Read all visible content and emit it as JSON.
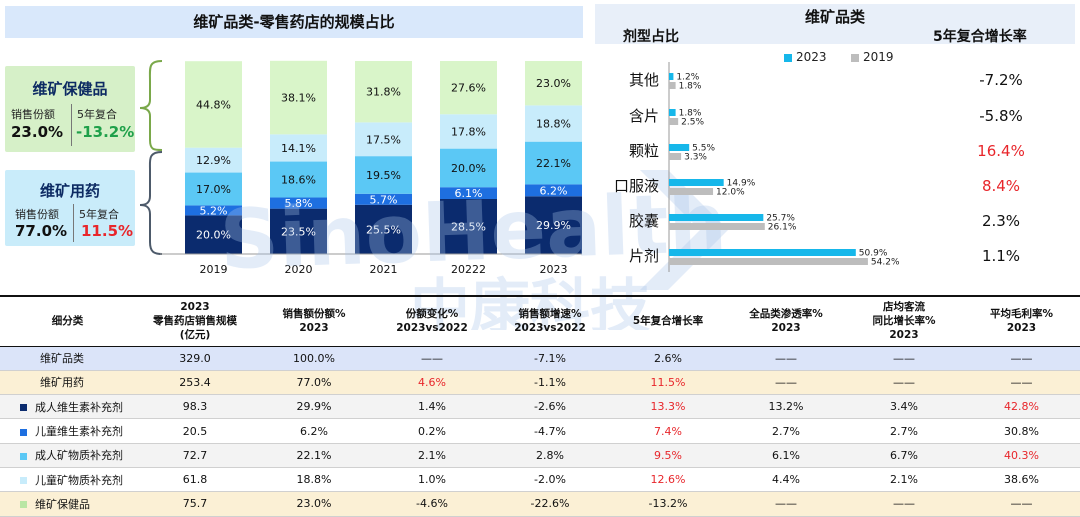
{
  "left_panel": {
    "title": "维矿品类-零售药店的规模占比",
    "health_callout": {
      "title": "维矿保健品",
      "share_label": "销售份额",
      "cagr_label": "5年复合",
      "share": "23.0%",
      "cagr": "-13.2%"
    },
    "drug_callout": {
      "title": "维矿用药",
      "share_label": "销售份额",
      "cagr_label": "5年复合",
      "share": "77.0%",
      "cagr": "11.5%"
    }
  },
  "right_panel": {
    "title": "维矿品类",
    "left_header": "剂型占比",
    "right_header": "5年复合增长率",
    "cagr_colors": {
      "positive": "#e8262b",
      "neutral": "#111111"
    }
  },
  "watermark": {
    "latin": "SinoHealth",
    "chinese": "中康科技"
  },
  "chart_data": [
    {
      "type": "bar",
      "stacked": true,
      "percent": true,
      "categories": [
        "2019",
        "2020",
        "2021",
        "20222",
        "2023"
      ],
      "series": [
        {
          "values": [
            20.0,
            23.5,
            25.5,
            28.5,
            29.9
          ],
          "color": "#0b2b6e"
        },
        {
          "values": [
            5.2,
            5.8,
            5.7,
            6.1,
            6.2
          ],
          "color": "#1e6fe0"
        },
        {
          "values": [
            17.0,
            18.6,
            19.5,
            20.0,
            22.1
          ],
          "color": "#5bc8f5"
        },
        {
          "values": [
            12.9,
            14.1,
            17.5,
            17.8,
            18.8
          ],
          "color": "#c8ecfb"
        },
        {
          "values": [
            44.8,
            38.1,
            31.8,
            27.6,
            23.0
          ],
          "color": "#d9f5c9"
        }
      ],
      "labels": [
        [
          "20.0%",
          "23.5%",
          "25.5%",
          "28.5%",
          "29.9%"
        ],
        [
          "5.2%",
          "5.8%",
          "5.7%",
          "6.1%",
          "6.2%"
        ],
        [
          "17.0%",
          "18.6%",
          "19.5%",
          "20.0%",
          "22.1%"
        ],
        [
          "12.9%",
          "14.1%",
          "17.5%",
          "17.8%",
          "18.8%"
        ],
        [
          "44.8%",
          "38.1%",
          "31.8%",
          "27.6%",
          "23.0%"
        ]
      ],
      "ylim": [
        0,
        100
      ],
      "title": "维矿品类-零售药店的规模占比"
    },
    {
      "type": "bar",
      "orientation": "horizontal",
      "categories": [
        "其他",
        "含片",
        "颗粒",
        "口服液",
        "胶囊",
        "片剂"
      ],
      "series": [
        {
          "name": "2023",
          "values": [
            1.2,
            1.8,
            5.5,
            14.9,
            25.7,
            50.9
          ],
          "color": "#16b7ea"
        },
        {
          "name": "2019",
          "values": [
            1.8,
            2.5,
            3.3,
            12.0,
            26.1,
            54.2
          ],
          "color": "#bdbdbd"
        }
      ],
      "cagr": [
        "-7.2%",
        "-5.8%",
        "16.4%",
        "8.4%",
        "2.3%",
        "1.1%"
      ],
      "cagr_red": [
        false,
        false,
        true,
        true,
        false,
        false
      ],
      "legend": "top",
      "xlim": [
        0,
        60
      ],
      "title": "维矿品类"
    }
  ],
  "table": {
    "headers": [
      "细分类",
      "2023\n零售药店销售规模\n(亿元)",
      "销售额份额%\n2023",
      "份额变化%\n2023vs2022",
      "销售额增速%\n2023vs2022",
      "5年复合增长率",
      "全品类渗透率%\n2023",
      "店均客流\n同比增长率%\n2023",
      "平均毛利率%\n2023"
    ],
    "rows": [
      {
        "kind": "cat",
        "marker": "",
        "cells": [
          "维矿品类",
          "329.0",
          "100.0%",
          "——",
          "-7.1%",
          "2.6%",
          "——",
          "——",
          "——"
        ],
        "red": []
      },
      {
        "kind": "drug",
        "marker": "",
        "cells": [
          "维矿用药",
          "253.4",
          "77.0%",
          "4.6%",
          "-1.1%",
          "11.5%",
          "——",
          "——",
          "——"
        ],
        "red": [
          3,
          5
        ]
      },
      {
        "kind": "sub",
        "marker": "#0b2b6e",
        "cells": [
          "成人维生素补充剂",
          "98.3",
          "29.9%",
          "1.4%",
          "-2.6%",
          "13.3%",
          "13.2%",
          "3.4%",
          "42.8%"
        ],
        "red": [
          5,
          8
        ]
      },
      {
        "kind": "sub",
        "marker": "#1e6fe0",
        "cells": [
          "儿童维生素补充剂",
          "20.5",
          "6.2%",
          "0.2%",
          "-4.7%",
          "7.4%",
          "2.7%",
          "2.7%",
          "30.8%"
        ],
        "red": [
          5
        ]
      },
      {
        "kind": "sub",
        "marker": "#5bc8f5",
        "cells": [
          "成人矿物质补充剂",
          "72.7",
          "22.1%",
          "2.1%",
          "2.8%",
          "9.5%",
          "6.1%",
          "6.7%",
          "40.3%"
        ],
        "red": [
          5,
          8
        ]
      },
      {
        "kind": "sub",
        "marker": "#c8ecfb",
        "cells": [
          "儿童矿物质补充剂",
          "61.8",
          "18.8%",
          "1.0%",
          "-2.0%",
          "12.6%",
          "4.4%",
          "2.1%",
          "38.6%"
        ],
        "red": [
          5
        ]
      },
      {
        "kind": "health",
        "marker": "#b9e6a4",
        "cells": [
          "维矿保健品",
          "75.7",
          "23.0%",
          "-4.6%",
          "-22.6%",
          "-13.2%",
          "——",
          "——",
          "——"
        ],
        "red": []
      }
    ]
  }
}
